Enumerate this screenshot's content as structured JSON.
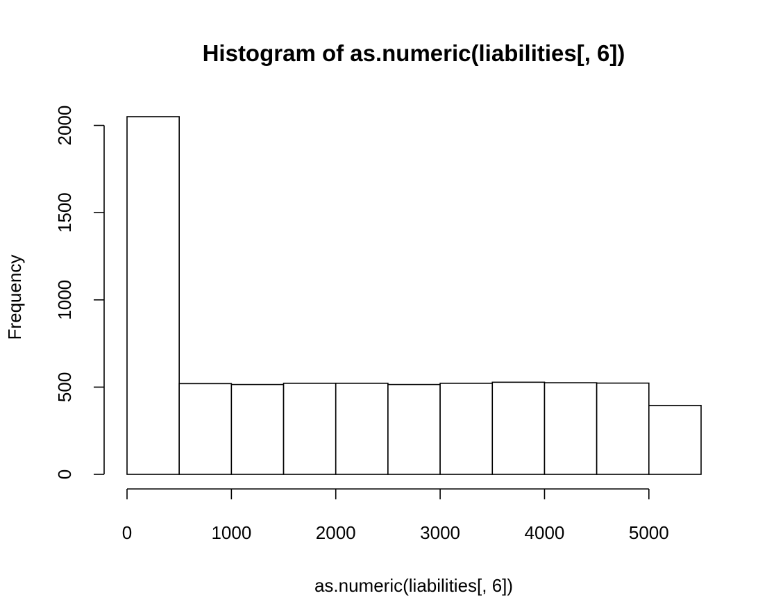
{
  "chart_data": {
    "type": "bar",
    "title": "Histogram of as.numeric(liabilities[, 6])",
    "xlabel": "as.numeric(liabilities[, 6])",
    "ylabel": "Frequency",
    "bins": [
      {
        "start": 0,
        "end": 500,
        "count": 2050
      },
      {
        "start": 500,
        "end": 1000,
        "count": 520
      },
      {
        "start": 1000,
        "end": 1500,
        "count": 515
      },
      {
        "start": 1500,
        "end": 2000,
        "count": 522
      },
      {
        "start": 2000,
        "end": 2500,
        "count": 522
      },
      {
        "start": 2500,
        "end": 3000,
        "count": 515
      },
      {
        "start": 3000,
        "end": 3500,
        "count": 522
      },
      {
        "start": 3500,
        "end": 4000,
        "count": 528
      },
      {
        "start": 4000,
        "end": 4500,
        "count": 525
      },
      {
        "start": 4500,
        "end": 5000,
        "count": 523
      },
      {
        "start": 5000,
        "end": 5500,
        "count": 395
      }
    ],
    "xlim": [
      0,
      5500
    ],
    "ylim": [
      0,
      2050
    ],
    "x_ticks": [
      0,
      1000,
      2000,
      3000,
      4000,
      5000
    ],
    "x_tick_labels": [
      "0",
      "1000",
      "2000",
      "3000",
      "4000",
      "5000"
    ],
    "y_ticks": [
      0,
      500,
      1000,
      1500,
      2000
    ],
    "y_tick_labels": [
      "0",
      "500",
      "1000",
      "1500",
      "2000"
    ],
    "grid": false,
    "legend": "none",
    "colors": {
      "bar_fill": "#ffffff",
      "bar_stroke": "#000000"
    }
  }
}
